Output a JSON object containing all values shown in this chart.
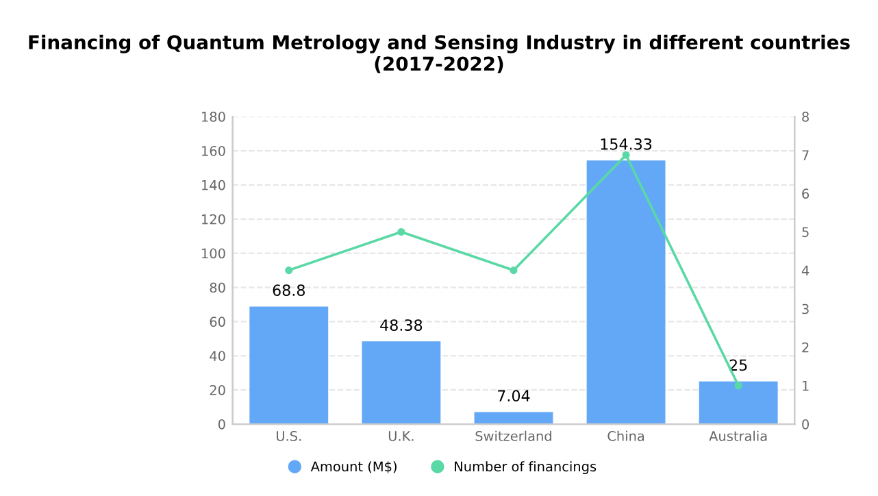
{
  "chart_data": {
    "type": "bar",
    "title": "Financing of Quantum Metrology and Sensing Industry in different countries\n(2017-2022)",
    "categories": [
      "U.S.",
      "U.K.",
      "Switzerland",
      "China",
      "Australia"
    ],
    "series": [
      {
        "name": "Amount (M$)",
        "color": "#62a8f7",
        "values": [
          68.8,
          48.38,
          7.04,
          154.33,
          25
        ],
        "value_labels": [
          "68.8",
          "48.38",
          "7.04",
          "154.33",
          "25"
        ]
      },
      {
        "name": "Number of financings",
        "type": "line",
        "axis": "y2",
        "color": "#5ad8a6",
        "values": [
          4,
          5,
          4,
          7,
          1
        ]
      }
    ],
    "ylim": [
      0,
      180
    ],
    "yticks": [
      0,
      20,
      40,
      60,
      80,
      100,
      120,
      140,
      160,
      180
    ],
    "y2lim": [
      0,
      8
    ],
    "y2ticks": [
      0,
      1,
      2,
      3,
      4,
      5,
      6,
      7,
      8
    ],
    "grid": "y",
    "legend": "bottom",
    "marker": "circle"
  }
}
